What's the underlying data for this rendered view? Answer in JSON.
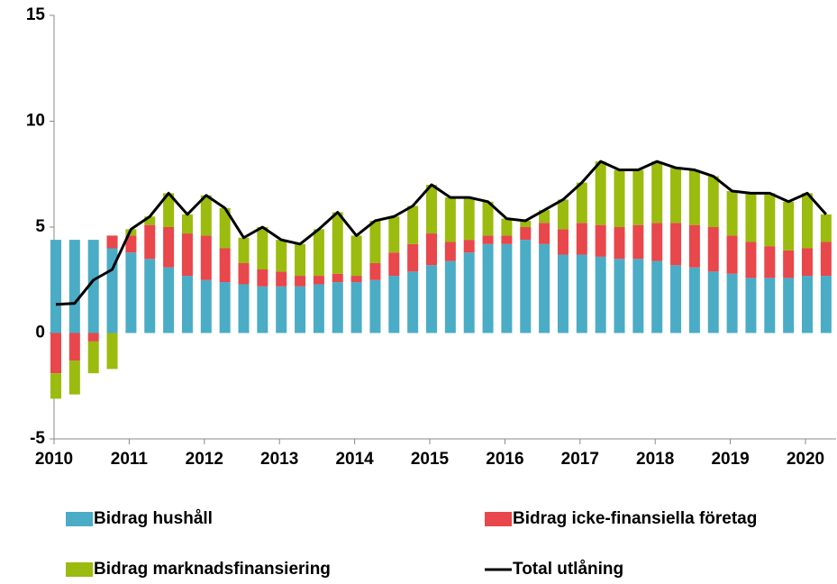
{
  "chart_data": {
    "type": "bar-line",
    "categories": [
      "2010",
      null,
      null,
      null,
      "2011",
      null,
      null,
      null,
      "2012",
      null,
      null,
      null,
      "2013",
      null,
      null,
      null,
      "2014",
      null,
      null,
      null,
      "2015",
      null,
      null,
      null,
      "2016",
      null,
      null,
      null,
      "2017",
      null,
      null,
      null,
      "2018",
      null,
      null,
      null,
      "2019",
      null,
      null,
      null,
      "2020",
      null
    ],
    "series": [
      {
        "name": "Bidrag hushåll",
        "color": "#4bacc6",
        "kind": "bar",
        "values": [
          4.4,
          4.4,
          4.4,
          4.0,
          3.8,
          3.5,
          3.1,
          2.7,
          2.5,
          2.4,
          2.3,
          2.2,
          2.2,
          2.2,
          2.3,
          2.4,
          2.4,
          2.5,
          2.7,
          2.9,
          3.2,
          3.4,
          3.8,
          4.2,
          4.2,
          4.4,
          4.2,
          3.7,
          3.7,
          3.6,
          3.5,
          3.5,
          3.4,
          3.2,
          3.1,
          2.9,
          2.8,
          2.6,
          2.6,
          2.6,
          2.7,
          2.7
        ]
      },
      {
        "name": "Bidrag icke-finansiella företag",
        "color": "#e8474b",
        "kind": "bar",
        "values": [
          -1.9,
          -1.3,
          -0.4,
          0.6,
          0.8,
          1.6,
          1.9,
          2.0,
          2.1,
          1.6,
          1.0,
          0.8,
          0.7,
          0.5,
          0.4,
          0.4,
          0.3,
          0.8,
          1.1,
          1.3,
          1.5,
          0.9,
          0.6,
          0.4,
          0.4,
          0.6,
          1.0,
          1.2,
          1.5,
          1.5,
          1.5,
          1.6,
          1.8,
          2.0,
          2.0,
          2.1,
          1.8,
          1.7,
          1.5,
          1.3,
          1.3,
          1.6
        ]
      },
      {
        "name": "Bidrag marknadsfinansiering",
        "color": "#9bbb0f",
        "kind": "bar",
        "values": [
          -1.2,
          -1.6,
          -1.5,
          -1.7,
          0.3,
          0.4,
          1.6,
          0.9,
          1.9,
          1.9,
          1.2,
          2.0,
          1.5,
          1.5,
          2.2,
          2.9,
          1.9,
          2.0,
          1.7,
          1.8,
          2.3,
          2.1,
          2.0,
          1.6,
          0.8,
          0.3,
          0.6,
          1.4,
          1.9,
          3.0,
          2.7,
          2.6,
          2.9,
          2.6,
          2.6,
          2.4,
          2.1,
          2.3,
          2.5,
          2.3,
          2.6,
          1.3
        ]
      },
      {
        "name": "Total utlåning",
        "color": "#000000",
        "kind": "line",
        "values": [
          1.35,
          1.4,
          2.5,
          3.0,
          4.9,
          5.5,
          6.6,
          5.6,
          6.5,
          5.9,
          4.5,
          5.0,
          4.4,
          4.2,
          4.9,
          5.7,
          4.6,
          5.3,
          5.5,
          6.0,
          7.0,
          6.4,
          6.4,
          6.2,
          5.4,
          5.3,
          5.8,
          6.3,
          7.1,
          8.1,
          7.7,
          7.7,
          8.1,
          7.8,
          7.7,
          7.4,
          6.7,
          6.6,
          6.6,
          6.2,
          6.6,
          5.6
        ]
      }
    ],
    "ylim": [
      -5,
      15
    ],
    "yticks": [
      -5,
      0,
      5,
      10,
      15
    ]
  }
}
